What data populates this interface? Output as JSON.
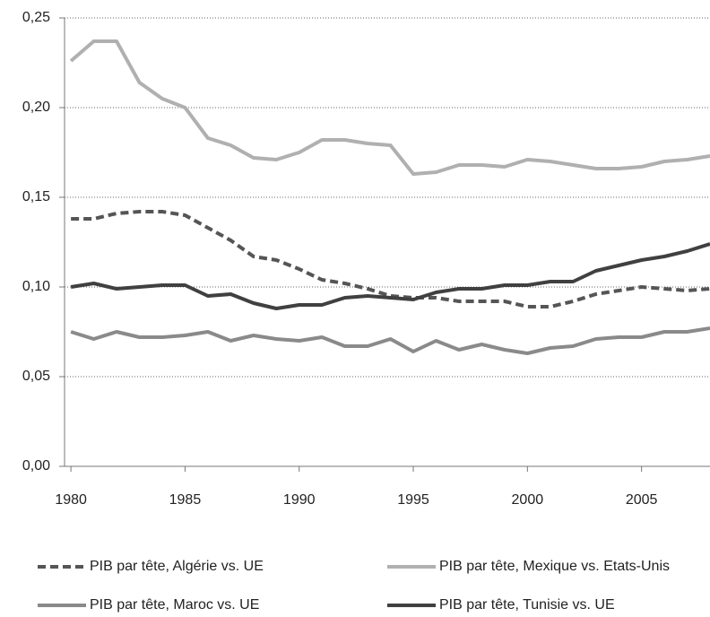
{
  "chart_data": {
    "type": "line",
    "x": [
      1980,
      1981,
      1982,
      1983,
      1984,
      1985,
      1986,
      1987,
      1988,
      1989,
      1990,
      1991,
      1992,
      1993,
      1994,
      1995,
      1996,
      1997,
      1998,
      1999,
      2000,
      2001,
      2002,
      2003,
      2004,
      2005,
      2006,
      2007,
      2008
    ],
    "series": [
      {
        "name": "PIB par tête, Algérie vs. UE",
        "color": "#555555",
        "dashed": true,
        "values": [
          0.138,
          0.138,
          0.141,
          0.142,
          0.142,
          0.14,
          0.133,
          0.126,
          0.117,
          0.115,
          0.11,
          0.104,
          0.102,
          0.099,
          0.095,
          0.094,
          0.094,
          0.092,
          0.092,
          0.092,
          0.089,
          0.089,
          0.092,
          0.096,
          0.098,
          0.1,
          0.099,
          0.098,
          0.099
        ]
      },
      {
        "name": "PIB par tête, Mexique vs. Etats-Unis",
        "color": "#b0b0b0",
        "dashed": false,
        "values": [
          0.226,
          0.237,
          0.237,
          0.214,
          0.205,
          0.2,
          0.183,
          0.179,
          0.172,
          0.171,
          0.175,
          0.182,
          0.182,
          0.18,
          0.179,
          0.163,
          0.164,
          0.168,
          0.168,
          0.167,
          0.171,
          0.17,
          0.168,
          0.166,
          0.166,
          0.167,
          0.17,
          0.171,
          0.173
        ]
      },
      {
        "name": "PIB par tête, Maroc vs. UE",
        "color": "#8a8a8a",
        "dashed": false,
        "values": [
          0.075,
          0.071,
          0.075,
          0.072,
          0.072,
          0.073,
          0.075,
          0.07,
          0.073,
          0.071,
          0.07,
          0.072,
          0.067,
          0.067,
          0.071,
          0.064,
          0.07,
          0.065,
          0.068,
          0.065,
          0.063,
          0.066,
          0.067,
          0.071,
          0.072,
          0.072,
          0.075,
          0.075,
          0.077
        ]
      },
      {
        "name": "PIB par tête, Tunisie vs. UE",
        "color": "#404040",
        "dashed": false,
        "values": [
          0.1,
          0.102,
          0.099,
          0.1,
          0.101,
          0.101,
          0.095,
          0.096,
          0.091,
          0.088,
          0.09,
          0.09,
          0.094,
          0.095,
          0.094,
          0.093,
          0.097,
          0.099,
          0.099,
          0.101,
          0.101,
          0.103,
          0.103,
          0.109,
          0.112,
          0.115,
          0.117,
          0.12,
          0.124
        ]
      }
    ],
    "xlim": [
      1979.72,
      2008
    ],
    "xticks": [
      1980,
      1985,
      1990,
      1995,
      2000,
      2005
    ],
    "ylim": [
      0,
      0.25
    ],
    "yticks": [
      {
        "value": 0,
        "label": "0,00"
      },
      {
        "value": 0.05,
        "label": "0,05"
      },
      {
        "value": 0.1,
        "label": "0,10"
      },
      {
        "value": 0.15,
        "label": "0,15"
      },
      {
        "value": 0.2,
        "label": "0,20"
      },
      {
        "value": 0.25,
        "label": "0,25"
      }
    ],
    "grid": true,
    "legend": "bottom"
  }
}
